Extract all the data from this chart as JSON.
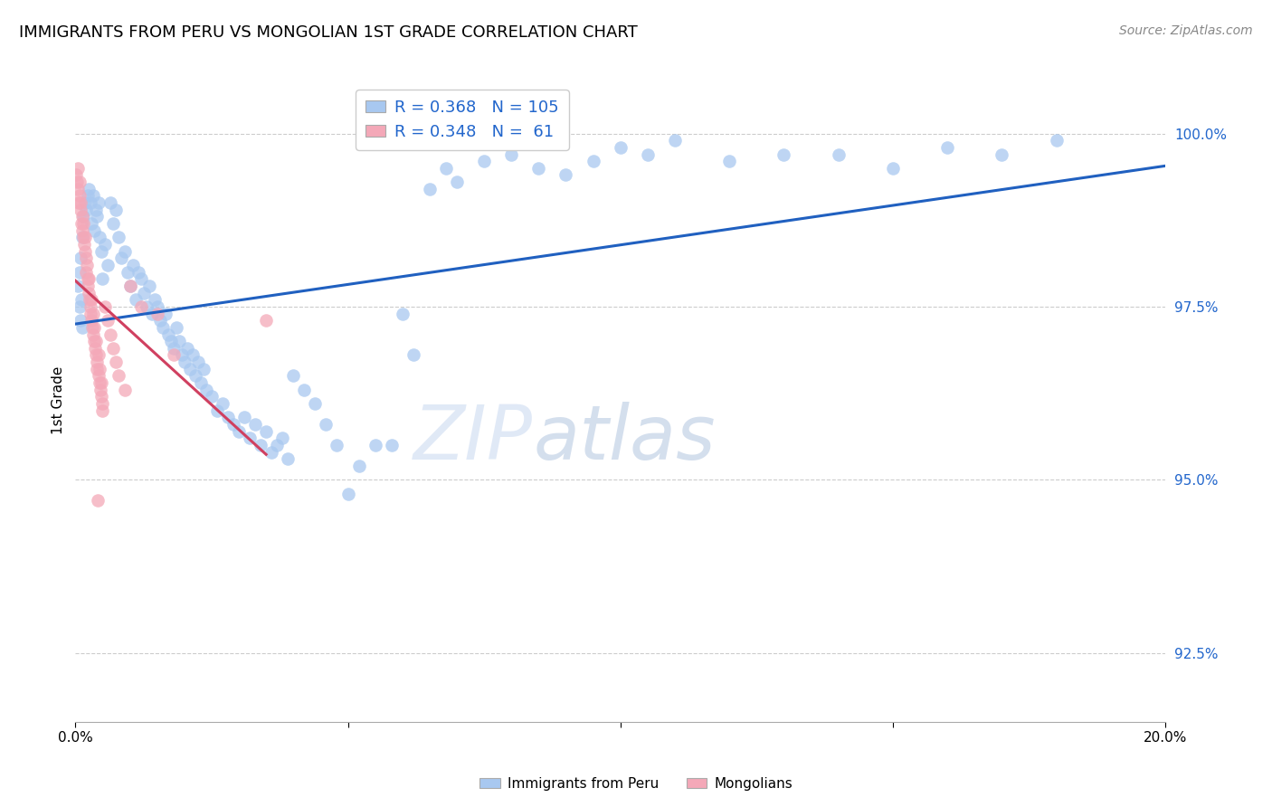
{
  "title": "IMMIGRANTS FROM PERU VS MONGOLIAN 1ST GRADE CORRELATION CHART",
  "source": "Source: ZipAtlas.com",
  "ylabel": "1st Grade",
  "y_ticks": [
    92.5,
    95.0,
    97.5,
    100.0
  ],
  "xlim": [
    0.0,
    20.0
  ],
  "ylim": [
    91.5,
    100.8
  ],
  "legend_blue_r": "0.368",
  "legend_blue_n": "105",
  "legend_pink_r": "0.348",
  "legend_pink_n": "61",
  "blue_color": "#A8C8F0",
  "pink_color": "#F4A8B8",
  "blue_line_color": "#2060C0",
  "pink_line_color": "#D04060",
  "blue_points_x": [
    0.05,
    0.08,
    0.1,
    0.12,
    0.15,
    0.18,
    0.2,
    0.22,
    0.25,
    0.28,
    0.3,
    0.32,
    0.35,
    0.38,
    0.4,
    0.42,
    0.45,
    0.48,
    0.5,
    0.55,
    0.6,
    0.65,
    0.7,
    0.75,
    0.8,
    0.85,
    0.9,
    0.95,
    1.0,
    1.05,
    1.1,
    1.15,
    1.2,
    1.25,
    1.3,
    1.35,
    1.4,
    1.45,
    1.5,
    1.55,
    1.6,
    1.65,
    1.7,
    1.75,
    1.8,
    1.85,
    1.9,
    1.95,
    2.0,
    2.05,
    2.1,
    2.15,
    2.2,
    2.25,
    2.3,
    2.35,
    2.4,
    2.5,
    2.6,
    2.7,
    2.8,
    2.9,
    3.0,
    3.1,
    3.2,
    3.3,
    3.4,
    3.5,
    3.6,
    3.7,
    3.8,
    3.9,
    4.0,
    4.2,
    4.4,
    4.6,
    4.8,
    5.0,
    5.2,
    5.5,
    5.8,
    6.0,
    6.2,
    6.5,
    6.8,
    7.0,
    7.5,
    8.0,
    8.5,
    9.0,
    9.5,
    10.0,
    10.5,
    11.0,
    12.0,
    13.0,
    14.0,
    15.0,
    16.0,
    17.0,
    18.0,
    0.07,
    0.09,
    0.11,
    0.13
  ],
  "blue_points_y": [
    97.8,
    98.0,
    98.2,
    98.5,
    98.8,
    99.0,
    98.9,
    99.1,
    99.2,
    99.0,
    98.7,
    99.1,
    98.6,
    98.9,
    98.8,
    99.0,
    98.5,
    98.3,
    97.9,
    98.4,
    98.1,
    99.0,
    98.7,
    98.9,
    98.5,
    98.2,
    98.3,
    98.0,
    97.8,
    98.1,
    97.6,
    98.0,
    97.9,
    97.7,
    97.5,
    97.8,
    97.4,
    97.6,
    97.5,
    97.3,
    97.2,
    97.4,
    97.1,
    97.0,
    96.9,
    97.2,
    97.0,
    96.8,
    96.7,
    96.9,
    96.6,
    96.8,
    96.5,
    96.7,
    96.4,
    96.6,
    96.3,
    96.2,
    96.0,
    96.1,
    95.9,
    95.8,
    95.7,
    95.9,
    95.6,
    95.8,
    95.5,
    95.7,
    95.4,
    95.5,
    95.6,
    95.3,
    96.5,
    96.3,
    96.1,
    95.8,
    95.5,
    94.8,
    95.2,
    95.5,
    95.5,
    97.4,
    96.8,
    99.2,
    99.5,
    99.3,
    99.6,
    99.7,
    99.5,
    99.4,
    99.6,
    99.8,
    99.7,
    99.9,
    99.6,
    99.7,
    99.7,
    99.5,
    99.8,
    99.7,
    99.9,
    97.5,
    97.3,
    97.6,
    97.2
  ],
  "pink_points_x": [
    0.02,
    0.03,
    0.04,
    0.05,
    0.06,
    0.07,
    0.08,
    0.09,
    0.1,
    0.11,
    0.12,
    0.13,
    0.14,
    0.15,
    0.16,
    0.17,
    0.18,
    0.19,
    0.2,
    0.21,
    0.22,
    0.23,
    0.24,
    0.25,
    0.26,
    0.27,
    0.28,
    0.29,
    0.3,
    0.31,
    0.32,
    0.33,
    0.34,
    0.35,
    0.36,
    0.37,
    0.38,
    0.39,
    0.4,
    0.41,
    0.42,
    0.43,
    0.44,
    0.45,
    0.46,
    0.47,
    0.48,
    0.49,
    0.5,
    0.55,
    0.6,
    0.65,
    0.7,
    0.75,
    0.8,
    0.9,
    1.0,
    1.2,
    1.5,
    1.8,
    3.5
  ],
  "pink_points_y": [
    99.4,
    99.3,
    99.5,
    99.2,
    99.0,
    99.3,
    99.1,
    98.9,
    99.0,
    98.7,
    98.8,
    98.6,
    98.5,
    98.7,
    98.4,
    98.3,
    98.5,
    98.2,
    98.0,
    98.1,
    97.9,
    97.8,
    97.7,
    97.9,
    97.6,
    97.5,
    97.4,
    97.6,
    97.3,
    97.2,
    97.4,
    97.1,
    97.0,
    97.2,
    96.9,
    96.8,
    97.0,
    96.7,
    96.6,
    94.7,
    96.8,
    96.5,
    96.4,
    96.6,
    96.3,
    96.2,
    96.4,
    96.1,
    96.0,
    97.5,
    97.3,
    97.1,
    96.9,
    96.7,
    96.5,
    96.3,
    97.8,
    97.5,
    97.4,
    96.8,
    97.3
  ]
}
